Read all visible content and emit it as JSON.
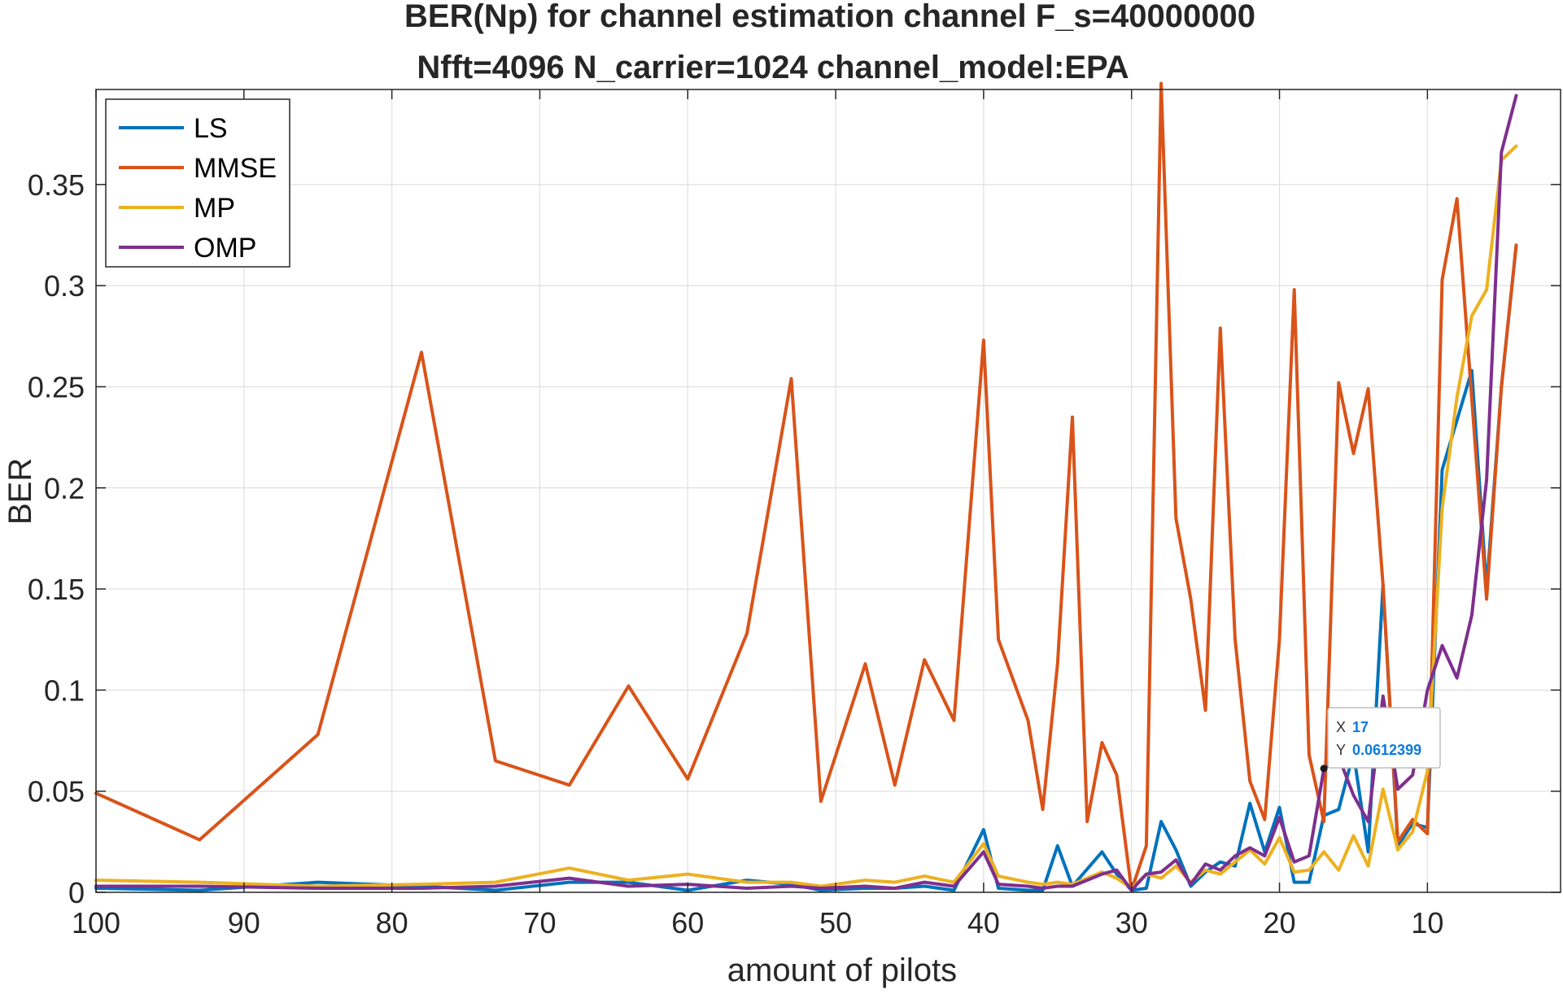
{
  "chart_data": {
    "type": "line",
    "title": "BER(Np) for channel estimation channel F_s=40000000",
    "subtitle": "Nfft=4096 N_carrier=1024 channel_model:EPA",
    "xlabel": "amount of pilots",
    "ylabel": "BER",
    "xlim": [
      100,
      1
    ],
    "ylim": [
      0,
      0.397
    ],
    "x_reversed": true,
    "grid": true,
    "legend_position": "top-left",
    "x_ticks": [
      "100",
      "90",
      "80",
      "70",
      "60",
      "50",
      "40",
      "30",
      "20",
      "10"
    ],
    "y_ticks": [
      "0",
      "0.05",
      "0.1",
      "0.15",
      "0.2",
      "0.25",
      "0.3",
      "0.35"
    ],
    "x_tick_values": [
      100,
      90,
      80,
      70,
      60,
      50,
      40,
      30,
      20,
      10
    ],
    "y_tick_values": [
      0,
      0.05,
      0.1,
      0.15,
      0.2,
      0.25,
      0.3,
      0.35
    ],
    "series": [
      {
        "name": "LS",
        "color": "#0072BD",
        "points": [
          [
            100,
            0.002
          ],
          [
            93,
            0.001
          ],
          [
            85,
            0.005
          ],
          [
            78,
            0.003
          ],
          [
            73,
            0.001
          ],
          [
            68,
            0.005
          ],
          [
            64,
            0.005
          ],
          [
            60,
            0.001
          ],
          [
            56,
            0.006
          ],
          [
            53,
            0.004
          ],
          [
            51,
            0.001
          ],
          [
            48,
            0.002
          ],
          [
            46,
            0.002
          ],
          [
            44,
            0.003
          ],
          [
            42,
            0.001
          ],
          [
            40,
            0.031
          ],
          [
            39,
            0.002
          ],
          [
            37,
            0.001
          ],
          [
            36,
            0.001
          ],
          [
            35,
            0.023
          ],
          [
            34,
            0.003
          ],
          [
            32,
            0.02
          ],
          [
            31,
            0.009
          ],
          [
            30,
            0.001
          ],
          [
            29,
            0.002
          ],
          [
            28,
            0.035
          ],
          [
            27,
            0.021
          ],
          [
            26,
            0.003
          ],
          [
            25,
            0.01
          ],
          [
            24,
            0.015
          ],
          [
            23,
            0.013
          ],
          [
            22,
            0.044
          ],
          [
            21,
            0.02
          ],
          [
            20,
            0.042
          ],
          [
            19,
            0.005
          ],
          [
            18,
            0.005
          ],
          [
            17,
            0.038
          ],
          [
            16,
            0.041
          ],
          [
            15,
            0.069
          ],
          [
            14,
            0.02
          ],
          [
            13,
            0.152
          ],
          [
            12,
            0.023
          ],
          [
            11,
            0.034
          ],
          [
            10,
            0.032
          ],
          [
            9,
            0.209
          ],
          [
            7,
            0.258
          ],
          [
            6,
            0.15
          ],
          [
            5,
            0.25
          ],
          [
            4,
            0.32
          ]
        ]
      },
      {
        "name": "MMSE",
        "color": "#D95319",
        "points": [
          [
            100,
            0.049
          ],
          [
            93,
            0.026
          ],
          [
            85,
            0.078
          ],
          [
            78,
            0.267
          ],
          [
            73,
            0.065
          ],
          [
            68,
            0.053
          ],
          [
            64,
            0.102
          ],
          [
            60,
            0.056
          ],
          [
            56,
            0.128
          ],
          [
            53,
            0.254
          ],
          [
            51,
            0.045
          ],
          [
            48,
            0.113
          ],
          [
            46,
            0.053
          ],
          [
            44,
            0.115
          ],
          [
            42,
            0.085
          ],
          [
            40,
            0.273
          ],
          [
            39,
            0.125
          ],
          [
            37,
            0.085
          ],
          [
            36,
            0.041
          ],
          [
            35,
            0.113
          ],
          [
            34,
            0.235
          ],
          [
            33,
            0.035
          ],
          [
            32,
            0.074
          ],
          [
            31,
            0.058
          ],
          [
            30,
            0.001
          ],
          [
            29,
            0.023
          ],
          [
            28,
            0.4
          ],
          [
            27,
            0.185
          ],
          [
            26,
            0.145
          ],
          [
            25,
            0.09
          ],
          [
            24,
            0.279
          ],
          [
            23,
            0.125
          ],
          [
            22,
            0.055
          ],
          [
            21,
            0.036
          ],
          [
            20,
            0.125
          ],
          [
            19,
            0.298
          ],
          [
            18,
            0.068
          ],
          [
            17,
            0.035
          ],
          [
            16,
            0.252
          ],
          [
            15,
            0.217
          ],
          [
            14,
            0.249
          ],
          [
            13,
            0.152
          ],
          [
            12,
            0.025
          ],
          [
            11,
            0.036
          ],
          [
            10,
            0.029
          ],
          [
            9,
            0.303
          ],
          [
            8,
            0.343
          ],
          [
            6,
            0.145
          ],
          [
            5,
            0.25
          ],
          [
            4,
            0.32
          ]
        ]
      },
      {
        "name": "MP",
        "color": "#EDB120",
        "points": [
          [
            100,
            0.006
          ],
          [
            93,
            0.005
          ],
          [
            85,
            0.003
          ],
          [
            78,
            0.004
          ],
          [
            73,
            0.005
          ],
          [
            68,
            0.012
          ],
          [
            64,
            0.006
          ],
          [
            60,
            0.009
          ],
          [
            56,
            0.005
          ],
          [
            53,
            0.005
          ],
          [
            51,
            0.003
          ],
          [
            48,
            0.006
          ],
          [
            46,
            0.005
          ],
          [
            44,
            0.008
          ],
          [
            42,
            0.005
          ],
          [
            40,
            0.024
          ],
          [
            39,
            0.008
          ],
          [
            37,
            0.005
          ],
          [
            36,
            0.004
          ],
          [
            35,
            0.005
          ],
          [
            34,
            0.004
          ],
          [
            32,
            0.01
          ],
          [
            31,
            0.007
          ],
          [
            30,
            0.002
          ],
          [
            29,
            0.009
          ],
          [
            28,
            0.007
          ],
          [
            27,
            0.013
          ],
          [
            26,
            0.005
          ],
          [
            25,
            0.011
          ],
          [
            24,
            0.009
          ],
          [
            23,
            0.015
          ],
          [
            22,
            0.021
          ],
          [
            21,
            0.014
          ],
          [
            20,
            0.027
          ],
          [
            19,
            0.01
          ],
          [
            18,
            0.011
          ],
          [
            17,
            0.02
          ],
          [
            16,
            0.011
          ],
          [
            15,
            0.028
          ],
          [
            14,
            0.013
          ],
          [
            13,
            0.051
          ],
          [
            12,
            0.021
          ],
          [
            11,
            0.03
          ],
          [
            10,
            0.06
          ],
          [
            9,
            0.19
          ],
          [
            8,
            0.245
          ],
          [
            7,
            0.285
          ],
          [
            6,
            0.298
          ],
          [
            5,
            0.362
          ],
          [
            4,
            0.369
          ]
        ]
      },
      {
        "name": "OMP",
        "color": "#7E2F8E",
        "points": [
          [
            100,
            0.003
          ],
          [
            93,
            0.003
          ],
          [
            85,
            0.002
          ],
          [
            78,
            0.002
          ],
          [
            73,
            0.003
          ],
          [
            68,
            0.007
          ],
          [
            64,
            0.003
          ],
          [
            60,
            0.004
          ],
          [
            56,
            0.002
          ],
          [
            53,
            0.003
          ],
          [
            51,
            0.002
          ],
          [
            48,
            0.003
          ],
          [
            46,
            0.002
          ],
          [
            44,
            0.005
          ],
          [
            42,
            0.003
          ],
          [
            40,
            0.02
          ],
          [
            39,
            0.004
          ],
          [
            37,
            0.003
          ],
          [
            36,
            0.002
          ],
          [
            35,
            0.003
          ],
          [
            34,
            0.003
          ],
          [
            32,
            0.009
          ],
          [
            31,
            0.011
          ],
          [
            30,
            0.001
          ],
          [
            29,
            0.009
          ],
          [
            28,
            0.01
          ],
          [
            27,
            0.016
          ],
          [
            26,
            0.004
          ],
          [
            25,
            0.014
          ],
          [
            24,
            0.011
          ],
          [
            23,
            0.018
          ],
          [
            22,
            0.022
          ],
          [
            21,
            0.018
          ],
          [
            20,
            0.037
          ],
          [
            19,
            0.015
          ],
          [
            18,
            0.018
          ],
          [
            17,
            0.061
          ],
          [
            16,
            0.067
          ],
          [
            15,
            0.048
          ],
          [
            14,
            0.035
          ],
          [
            13,
            0.097
          ],
          [
            12,
            0.051
          ],
          [
            11,
            0.058
          ],
          [
            10,
            0.1
          ],
          [
            9,
            0.122
          ],
          [
            8,
            0.106
          ],
          [
            7,
            0.137
          ],
          [
            6,
            0.204
          ],
          [
            5,
            0.366
          ],
          [
            4,
            0.394
          ]
        ]
      }
    ],
    "datatip": {
      "x_label": "X",
      "x_value": "17",
      "y_label": "Y",
      "y_value": "0.0612399",
      "x": 17,
      "y": 0.0612399
    }
  }
}
